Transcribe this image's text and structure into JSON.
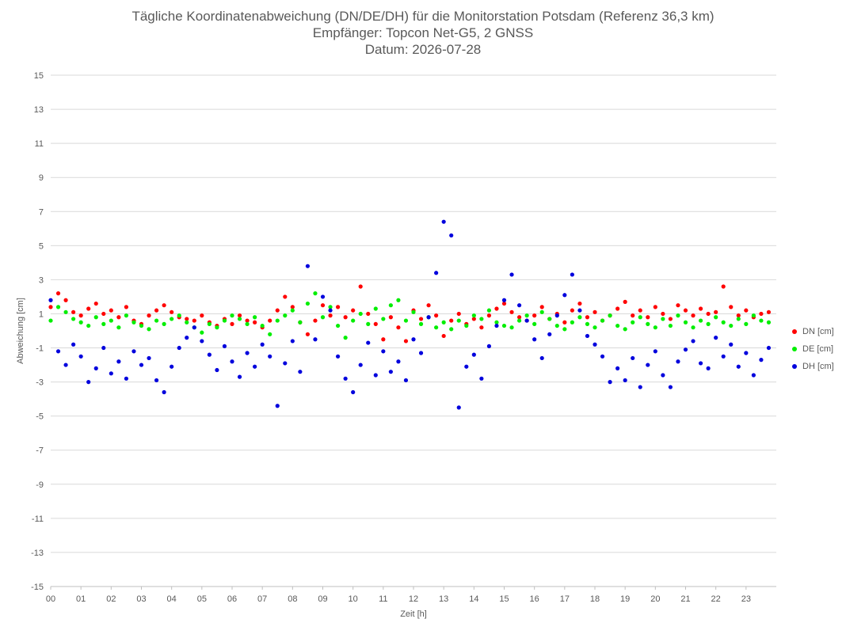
{
  "chart_data": {
    "type": "scatter",
    "title": "Tägliche Koordinatenabweichung (DN/DE/DH) für die Monitorstation Potsdam (Referenz 36,3 km)",
    "subtitle": "Empfänger: Topcon Net-G5, 2 GNSS",
    "date_line": "Datum: 2026-07-28",
    "xlabel": "Zeit [h]",
    "ylabel": "Abweichung [cm]",
    "xlim": [
      0,
      24
    ],
    "ylim": [
      -15,
      15
    ],
    "x_ticks": [
      "00",
      "01",
      "02",
      "03",
      "04",
      "05",
      "06",
      "07",
      "08",
      "09",
      "10",
      "11",
      "12",
      "13",
      "14",
      "15",
      "16",
      "17",
      "18",
      "19",
      "20",
      "21",
      "22",
      "23"
    ],
    "y_ticks": [
      "15",
      "13",
      "11",
      "9",
      "7",
      "5",
      "3",
      "1",
      "-1",
      "-3",
      "-5",
      "-7",
      "-9",
      "-11",
      "-13",
      "-15"
    ],
    "grid": "horizontal",
    "legend_position": "right",
    "series": [
      {
        "name": "DN [cm]",
        "color": "#ff0000",
        "x": [
          0.0,
          0.25,
          0.5,
          0.75,
          1.0,
          1.25,
          1.5,
          1.75,
          2.0,
          2.25,
          2.5,
          2.75,
          3.0,
          3.25,
          3.5,
          3.75,
          4.0,
          4.25,
          4.5,
          4.75,
          5.0,
          5.25,
          5.5,
          5.75,
          6.0,
          6.25,
          6.5,
          6.75,
          7.0,
          7.25,
          7.5,
          7.75,
          8.0,
          8.25,
          8.5,
          8.75,
          9.0,
          9.25,
          9.5,
          9.75,
          10.0,
          10.25,
          10.5,
          10.75,
          11.0,
          11.25,
          11.5,
          11.75,
          12.0,
          12.25,
          12.5,
          12.75,
          13.0,
          13.25,
          13.5,
          13.75,
          14.0,
          14.25,
          14.5,
          14.75,
          15.0,
          15.25,
          15.5,
          15.75,
          16.0,
          16.25,
          16.5,
          16.75,
          17.0,
          17.25,
          17.5,
          17.75,
          18.0,
          18.25,
          18.5,
          18.75,
          19.0,
          19.25,
          19.5,
          19.75,
          20.0,
          20.25,
          20.5,
          20.75,
          21.0,
          21.25,
          21.5,
          21.75,
          22.0,
          22.25,
          22.5,
          22.75,
          23.0,
          23.25,
          23.5,
          23.75
        ],
        "y": [
          1.4,
          2.2,
          1.8,
          1.1,
          0.9,
          1.3,
          1.6,
          1.0,
          1.2,
          0.8,
          1.4,
          0.6,
          0.4,
          0.9,
          1.2,
          1.5,
          1.1,
          0.8,
          0.7,
          0.6,
          0.9,
          0.5,
          0.3,
          0.7,
          0.4,
          0.9,
          0.6,
          0.5,
          0.2,
          0.6,
          1.2,
          2.0,
          1.4,
          0.5,
          -0.2,
          0.6,
          1.5,
          0.9,
          1.4,
          0.8,
          1.2,
          2.6,
          1.0,
          0.4,
          -0.5,
          0.8,
          0.2,
          -0.6,
          1.2,
          0.7,
          1.5,
          0.9,
          -0.3,
          0.6,
          1.0,
          0.4,
          0.7,
          0.2,
          0.9,
          1.3,
          1.6,
          1.1,
          0.8,
          0.6,
          0.9,
          1.4,
          0.7,
          1.0,
          0.5,
          1.2,
          1.6,
          0.8,
          1.1,
          0.6,
          0.9,
          1.3,
          1.7,
          0.9,
          1.2,
          0.8,
          1.4,
          1.0,
          0.7,
          1.5,
          1.2,
          0.9,
          1.3,
          1.0,
          1.1,
          2.6,
          1.4,
          0.9,
          1.2,
          0.8,
          1.0,
          1.1
        ]
      },
      {
        "name": "DE [cm]",
        "color": "#00ee00",
        "x": [
          0.0,
          0.25,
          0.5,
          0.75,
          1.0,
          1.25,
          1.5,
          1.75,
          2.0,
          2.25,
          2.5,
          2.75,
          3.0,
          3.25,
          3.5,
          3.75,
          4.0,
          4.25,
          4.5,
          4.75,
          5.0,
          5.25,
          5.5,
          5.75,
          6.0,
          6.25,
          6.5,
          6.75,
          7.0,
          7.25,
          7.5,
          7.75,
          8.0,
          8.25,
          8.5,
          8.75,
          9.0,
          9.25,
          9.5,
          9.75,
          10.0,
          10.25,
          10.5,
          10.75,
          11.0,
          11.25,
          11.5,
          11.75,
          12.0,
          12.25,
          12.5,
          12.75,
          13.0,
          13.25,
          13.5,
          13.75,
          14.0,
          14.25,
          14.5,
          14.75,
          15.0,
          15.25,
          15.5,
          15.75,
          16.0,
          16.25,
          16.5,
          16.75,
          17.0,
          17.25,
          17.5,
          17.75,
          18.0,
          18.25,
          18.5,
          18.75,
          19.0,
          19.25,
          19.5,
          19.75,
          20.0,
          20.25,
          20.5,
          20.75,
          21.0,
          21.25,
          21.5,
          21.75,
          22.0,
          22.25,
          22.5,
          22.75,
          23.0,
          23.25,
          23.5,
          23.75
        ],
        "y": [
          0.6,
          1.4,
          1.1,
          0.7,
          0.5,
          0.3,
          0.8,
          0.4,
          0.6,
          0.2,
          0.9,
          0.5,
          0.3,
          0.1,
          0.6,
          0.4,
          0.7,
          0.9,
          0.5,
          0.2,
          -0.1,
          0.4,
          0.2,
          0.6,
          0.9,
          0.7,
          0.4,
          0.8,
          0.3,
          -0.2,
          0.6,
          0.9,
          1.2,
          0.5,
          1.6,
          2.2,
          0.8,
          1.4,
          0.3,
          -0.4,
          0.6,
          1.0,
          0.4,
          1.3,
          0.7,
          1.5,
          1.8,
          0.6,
          1.1,
          0.4,
          0.8,
          0.2,
          0.5,
          0.1,
          0.6,
          0.3,
          0.9,
          0.7,
          1.2,
          0.5,
          0.3,
          0.2,
          0.6,
          0.9,
          0.4,
          1.1,
          0.7,
          0.3,
          0.1,
          0.5,
          0.8,
          0.4,
          0.2,
          0.6,
          0.9,
          0.3,
          0.1,
          0.5,
          0.8,
          0.4,
          0.2,
          0.7,
          0.3,
          0.9,
          0.5,
          0.2,
          0.6,
          0.4,
          0.8,
          0.5,
          0.3,
          0.7,
          0.4,
          0.9,
          0.6,
          0.5
        ]
      },
      {
        "name": "DH [cm]",
        "color": "#0000dd",
        "x": [
          0.0,
          0.25,
          0.5,
          0.75,
          1.0,
          1.25,
          1.5,
          1.75,
          2.0,
          2.25,
          2.5,
          2.75,
          3.0,
          3.25,
          3.5,
          3.75,
          4.0,
          4.25,
          4.5,
          4.75,
          5.0,
          5.25,
          5.5,
          5.75,
          6.0,
          6.25,
          6.5,
          6.75,
          7.0,
          7.25,
          7.5,
          7.75,
          8.0,
          8.25,
          8.5,
          8.75,
          9.0,
          9.25,
          9.5,
          9.75,
          10.0,
          10.25,
          10.5,
          10.75,
          11.0,
          11.25,
          11.5,
          11.75,
          12.0,
          12.25,
          12.5,
          12.75,
          13.0,
          13.25,
          13.5,
          13.75,
          14.0,
          14.25,
          14.5,
          14.75,
          15.0,
          15.25,
          15.5,
          15.75,
          16.0,
          16.25,
          16.5,
          16.75,
          17.0,
          17.25,
          17.5,
          17.75,
          18.0,
          18.25,
          18.5,
          18.75,
          19.0,
          19.25,
          19.5,
          19.75,
          20.0,
          20.25,
          20.5,
          20.75,
          21.0,
          21.25,
          21.5,
          21.75,
          22.0,
          22.25,
          22.5,
          22.75,
          23.0,
          23.25,
          23.5,
          23.75
        ],
        "y": [
          1.8,
          -1.2,
          -2.0,
          -0.8,
          -1.5,
          -3.0,
          -2.2,
          -1.0,
          -2.5,
          -1.8,
          -2.8,
          -1.2,
          -2.0,
          -1.6,
          -2.9,
          -3.6,
          -2.1,
          -1.0,
          -0.4,
          0.2,
          -0.6,
          -1.4,
          -2.3,
          -0.9,
          -1.8,
          -2.7,
          -1.3,
          -2.1,
          -0.8,
          -1.5,
          -4.4,
          -1.9,
          -0.6,
          -2.4,
          3.8,
          -0.5,
          2.0,
          1.2,
          -1.5,
          -2.8,
          -3.6,
          -2.0,
          -0.7,
          -2.6,
          -1.2,
          -2.4,
          -1.8,
          -2.9,
          -0.5,
          -1.3,
          0.8,
          3.4,
          6.4,
          5.6,
          -4.5,
          -2.1,
          -1.4,
          -2.8,
          -0.9,
          0.3,
          1.8,
          3.3,
          1.5,
          0.6,
          -0.5,
          -1.6,
          -0.2,
          0.9,
          2.1,
          3.3,
          1.2,
          -0.3,
          -0.8,
          -1.5,
          -3.0,
          -2.2,
          -2.9,
          -1.6,
          -3.3,
          -2.0,
          -1.2,
          -2.6,
          -3.3,
          -1.8,
          -1.1,
          -0.6,
          -1.9,
          -2.2,
          -0.4,
          -1.5,
          -0.8,
          -2.1,
          -1.3,
          -2.6,
          -1.7,
          -1.0
        ]
      }
    ]
  }
}
